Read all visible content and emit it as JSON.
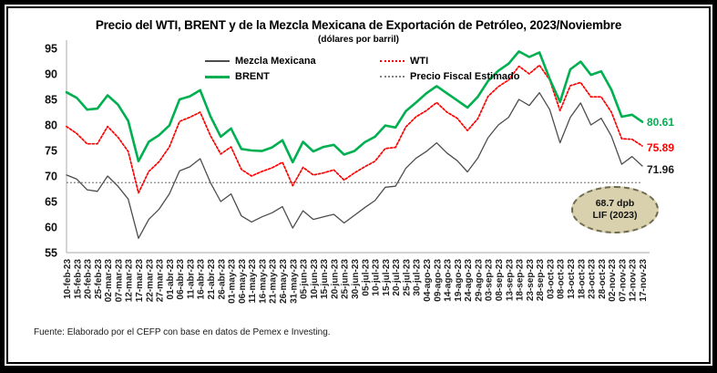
{
  "header": {
    "title": "Precio del WTI, BRENT y de la Mezcla Mexicana de Exportación de Petróleo, 2023/Noviembre",
    "subtitle": "(dólares por barril)"
  },
  "legend": {
    "items": [
      {
        "label": "Mezcla Mexicana",
        "color": "#4d4d4d",
        "style": "solid"
      },
      {
        "label": "WTI",
        "color": "#ff0000",
        "style": "dotted"
      },
      {
        "label": "BRENT",
        "color": "#00b050",
        "style": "solid"
      },
      {
        "label": "Precio Fiscal Estimado",
        "color": "#7f7f7f",
        "style": "dotted"
      }
    ]
  },
  "chart_data": {
    "type": "line",
    "title": "Precio del WTI, BRENT y de la Mezcla Mexicana de Exportación de Petróleo, 2023/Noviembre",
    "subtitle": "(dólares por barril)",
    "ylabel": "dólares por barril",
    "ylim": [
      55,
      95
    ],
    "yticks": [
      55,
      60,
      65,
      70,
      75,
      80,
      85,
      90,
      95
    ],
    "grid": false,
    "legend_position": "top",
    "x_labels": [
      "10-feb-23",
      "15-feb-23",
      "20-feb-23",
      "25-feb-23",
      "02-mar-23",
      "07-mar-23",
      "12-mar-23",
      "17-mar-23",
      "22-mar-23",
      "27-mar-23",
      "01-abr-23",
      "06-abr-23",
      "11-abr-23",
      "16-abr-23",
      "21-abr-23",
      "26-abr-23",
      "01-may-23",
      "06-may-23",
      "11-may-23",
      "16-may-23",
      "21-may-23",
      "26-may-23",
      "31-may-23",
      "05-jun-23",
      "10-jun-23",
      "15-jun-23",
      "20-jun-23",
      "25-jun-23",
      "30-jun-23",
      "05-jul-23",
      "10-jul-23",
      "15-jul-23",
      "20-jul-23",
      "25-jul-23",
      "30-jul-23",
      "04-ago-23",
      "09-ago-23",
      "14-ago-23",
      "19-ago-23",
      "24-ago-23",
      "29-ago-23",
      "03-sep-23",
      "08-sep-23",
      "13-sep-23",
      "18-sep-23",
      "23-sep-23",
      "28-sep-23",
      "03-oct-23",
      "08-oct-23",
      "13-oct-23",
      "18-oct-23",
      "23-oct-23",
      "28-oct-23",
      "02-nov-23",
      "07-nov-23",
      "12-nov-23",
      "17-nov-23"
    ],
    "series": [
      {
        "name": "Mezcla Mexicana",
        "color": "#4d4d4d",
        "style": "solid",
        "width": 1.3,
        "values": [
          70.2,
          69.4,
          67.3,
          67.0,
          70.0,
          68.0,
          65.5,
          57.8,
          61.5,
          63.5,
          66.5,
          71.0,
          71.8,
          73.4,
          68.7,
          65.0,
          66.5,
          62.2,
          61.0,
          62.0,
          62.8,
          64.0,
          59.8,
          63.2,
          61.5,
          62.0,
          62.5,
          60.8,
          62.3,
          63.8,
          65.2,
          67.8,
          68.0,
          71.5,
          73.5,
          74.8,
          76.5,
          74.5,
          73.0,
          70.8,
          73.5,
          77.5,
          80.0,
          81.5,
          85.0,
          83.8,
          86.3,
          83.0,
          76.5,
          81.5,
          84.3,
          80.0,
          81.3,
          77.8,
          72.3,
          73.8,
          71.96
        ]
      },
      {
        "name": "WTI",
        "color": "#ff0000",
        "style": "dotted",
        "width": 1.7,
        "values": [
          79.7,
          78.3,
          76.3,
          76.3,
          79.7,
          77.6,
          74.8,
          66.7,
          70.9,
          72.8,
          75.7,
          80.7,
          81.5,
          82.5,
          77.9,
          74.3,
          75.7,
          71.3,
          70.0,
          70.9,
          71.6,
          72.7,
          68.1,
          71.7,
          70.2,
          70.6,
          71.2,
          69.2,
          70.6,
          71.8,
          72.9,
          75.4,
          75.6,
          79.6,
          81.6,
          82.8,
          84.4,
          82.5,
          81.3,
          78.9,
          81.2,
          85.6,
          87.5,
          88.8,
          91.5,
          90.0,
          91.7,
          88.8,
          82.8,
          87.7,
          88.3,
          85.5,
          85.5,
          82.5,
          77.3,
          77.2,
          75.89
        ]
      },
      {
        "name": "BRENT",
        "color": "#00b050",
        "style": "solid",
        "width": 2.6,
        "values": [
          86.4,
          85.3,
          83.0,
          83.2,
          85.8,
          84.0,
          80.8,
          72.9,
          76.7,
          78.0,
          79.9,
          85.0,
          85.6,
          86.8,
          81.7,
          77.7,
          79.3,
          75.3,
          75.0,
          74.9,
          75.6,
          77.0,
          72.7,
          76.7,
          74.8,
          75.7,
          76.1,
          74.2,
          74.9,
          76.6,
          77.7,
          79.9,
          79.5,
          82.7,
          84.4,
          86.2,
          87.6,
          86.2,
          84.8,
          83.4,
          85.5,
          88.6,
          90.6,
          92.0,
          94.4,
          93.3,
          94.2,
          89.0,
          84.5,
          90.9,
          92.4,
          89.8,
          90.5,
          86.9,
          81.6,
          82.0,
          80.61
        ]
      },
      {
        "name": "Precio Fiscal Estimado",
        "color": "#7a7a7a",
        "style": "dotted",
        "width": 1.3,
        "constant": 68.7
      }
    ]
  },
  "annotations": {
    "end_labels": [
      {
        "text": "80.61",
        "value": 80.61,
        "color": "#00b050"
      },
      {
        "text": "75.89",
        "value": 75.89,
        "color": "#ff0000"
      },
      {
        "text": "71.96",
        "value": 71.96,
        "color": "#1a1a1a"
      }
    ],
    "ellipse": {
      "line1": "68.7 dpb",
      "line2": "LIF (2023)",
      "fill": "#d9d1ae"
    }
  },
  "footer": {
    "source": "Fuente: Elaborado por el CEFP con base en datos de Pemex e Investing."
  }
}
